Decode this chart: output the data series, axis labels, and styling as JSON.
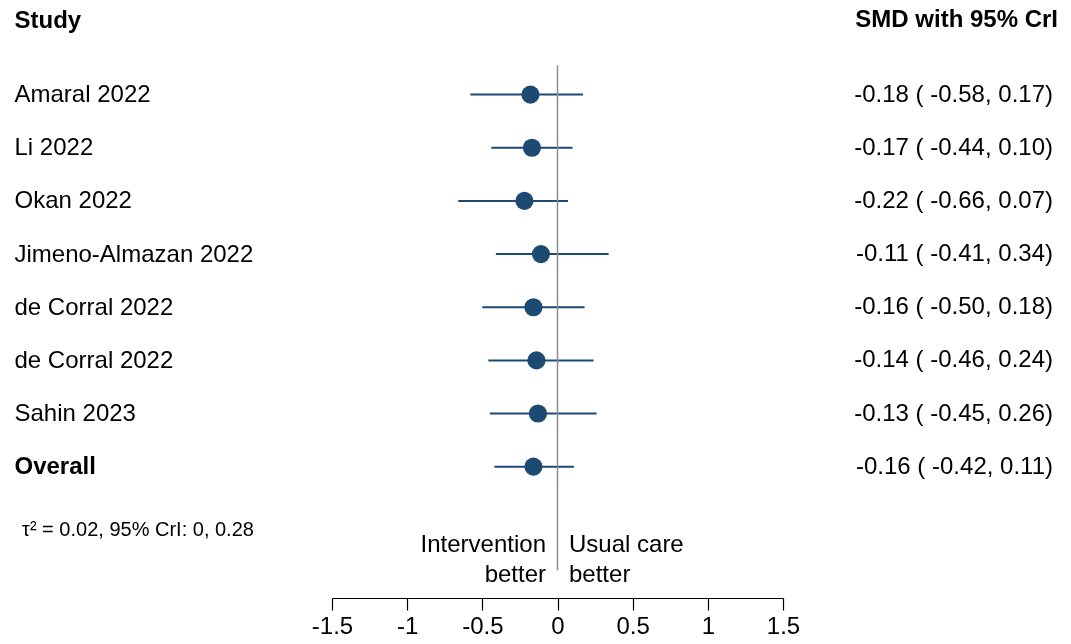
{
  "chart_data": {
    "type": "scatter",
    "orientation": "horizontal",
    "ylabel": "Study",
    "categories": [
      "Amaral 2022",
      "Li 2022",
      "Okan 2022",
      "Jimeno-Almazan 2022",
      "de Corral 2022",
      "de Corral 2022",
      "Sahin 2023",
      "Overall"
    ],
    "values": [
      -0.18,
      -0.17,
      -0.22,
      -0.11,
      -0.16,
      -0.14,
      -0.13,
      -0.16
    ],
    "errors": [
      [
        -0.58,
        0.17
      ],
      [
        -0.44,
        0.1
      ],
      [
        -0.66,
        0.07
      ],
      [
        -0.41,
        0.34
      ],
      [
        -0.5,
        0.18
      ],
      [
        -0.46,
        0.24
      ],
      [
        -0.45,
        0.26
      ],
      [
        -0.42,
        0.11
      ]
    ],
    "value_labels": [
      "-0.18 ( -0.58,  0.17)",
      "-0.17 ( -0.44,  0.10)",
      "-0.22 ( -0.66,  0.07)",
      "-0.11 ( -0.41,  0.34)",
      "-0.16 ( -0.50,  0.18)",
      "-0.14 ( -0.46,  0.24)",
      "-0.13 ( -0.45,  0.26)",
      "-0.16 ( -0.42,  0.11)"
    ],
    "color": "#1c4a72",
    "marker": "circle",
    "xlim": [
      -1.5,
      1.5
    ],
    "xticks": [
      -1.5,
      -1,
      -0.5,
      0,
      0.5,
      1,
      1.5
    ],
    "ref_lines": [
      {
        "axis": "x",
        "value": 0,
        "color": "#8c8c8c"
      }
    ],
    "annotations": [
      "SMD with 95% CrI",
      "τ² = 0.02, 95% CrI: 0, 0.28",
      "Intervention better",
      "Usual care better"
    ],
    "grid": false
  }
}
